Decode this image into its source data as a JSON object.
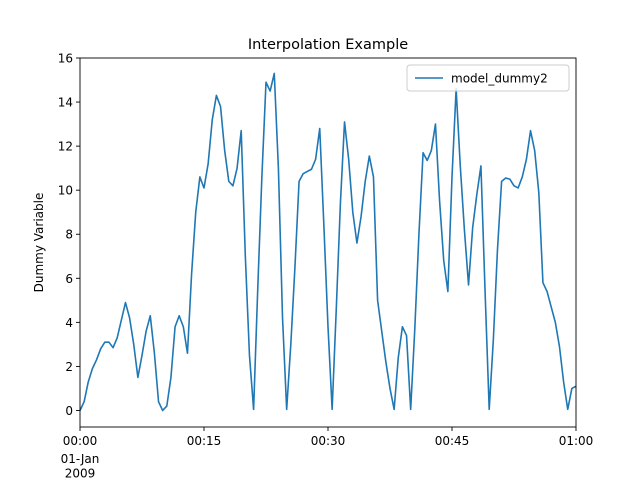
{
  "chart_data": {
    "type": "line",
    "title": "Interpolation Example",
    "xlabel": "",
    "ylabel": "Dummy Variable",
    "x_unit": "minutes",
    "xlim": [
      0,
      60
    ],
    "ylim": [
      -0.75,
      16
    ],
    "yticks": [
      0,
      2,
      4,
      6,
      8,
      10,
      12,
      14,
      16
    ],
    "xticks": [
      {
        "value": 0,
        "label": "00:00",
        "sublabel": "01-Jan\n2009"
      },
      {
        "value": 15,
        "label": "00:15",
        "sublabel": ""
      },
      {
        "value": 30,
        "label": "00:30",
        "sublabel": ""
      },
      {
        "value": 45,
        "label": "00:45",
        "sublabel": ""
      },
      {
        "value": 60,
        "label": "01:00",
        "sublabel": ""
      }
    ],
    "grid": false,
    "legend": {
      "placement": "top-right"
    },
    "series": [
      {
        "name": "model_dummy2",
        "color": "#1f77b4",
        "points": [
          [
            0,
            0
          ],
          [
            0.5,
            0.4
          ],
          [
            1.0,
            1.3
          ],
          [
            1.5,
            1.9
          ],
          [
            2.0,
            2.3
          ],
          [
            2.5,
            2.8
          ],
          [
            3.0,
            3.1
          ],
          [
            3.5,
            3.1
          ],
          [
            4.0,
            2.85
          ],
          [
            4.5,
            3.3
          ],
          [
            5.0,
            4.1
          ],
          [
            5.5,
            4.9
          ],
          [
            6.0,
            4.2
          ],
          [
            6.5,
            3.0
          ],
          [
            7.0,
            1.5
          ],
          [
            7.5,
            2.5
          ],
          [
            8.0,
            3.6
          ],
          [
            8.5,
            4.3
          ],
          [
            9.0,
            2.6
          ],
          [
            9.5,
            0.4
          ],
          [
            10.0,
            0.0
          ],
          [
            10.5,
            0.2
          ],
          [
            11.0,
            1.5
          ],
          [
            11.5,
            3.8
          ],
          [
            12.0,
            4.3
          ],
          [
            12.5,
            3.8
          ],
          [
            13.0,
            2.6
          ],
          [
            13.5,
            6.2
          ],
          [
            14.0,
            9.0
          ],
          [
            14.5,
            10.6
          ],
          [
            15.0,
            10.1
          ],
          [
            15.5,
            11.2
          ],
          [
            16.0,
            13.2
          ],
          [
            16.5,
            14.3
          ],
          [
            17.0,
            13.8
          ],
          [
            17.5,
            11.8
          ],
          [
            18.0,
            10.4
          ],
          [
            18.5,
            10.2
          ],
          [
            19.0,
            11.0
          ],
          [
            19.5,
            12.7
          ],
          [
            20.0,
            7.0
          ],
          [
            20.5,
            2.5
          ],
          [
            21.0,
            0.05
          ],
          [
            21.5,
            5.5
          ],
          [
            22.0,
            10.6
          ],
          [
            22.5,
            14.9
          ],
          [
            23.0,
            14.5
          ],
          [
            23.5,
            15.3
          ],
          [
            24.0,
            11.0
          ],
          [
            24.5,
            4.2
          ],
          [
            25.0,
            0.05
          ],
          [
            25.5,
            3.0
          ],
          [
            26.0,
            6.5
          ],
          [
            26.5,
            10.4
          ],
          [
            27.0,
            10.75
          ],
          [
            27.5,
            10.85
          ],
          [
            28.0,
            10.95
          ],
          [
            28.5,
            11.4
          ],
          [
            29.0,
            12.8
          ],
          [
            29.5,
            8.4
          ],
          [
            30.0,
            3.8
          ],
          [
            30.5,
            0.05
          ],
          [
            31.0,
            4.6
          ],
          [
            31.5,
            9.4
          ],
          [
            32.0,
            13.1
          ],
          [
            32.5,
            11.4
          ],
          [
            33.0,
            9.0
          ],
          [
            33.5,
            7.6
          ],
          [
            34.0,
            8.8
          ],
          [
            34.5,
            10.4
          ],
          [
            35.0,
            11.55
          ],
          [
            35.5,
            10.6
          ],
          [
            36.0,
            5.0
          ],
          [
            36.5,
            3.6
          ],
          [
            37.0,
            2.2
          ],
          [
            37.5,
            1.0
          ],
          [
            38.0,
            0.05
          ],
          [
            38.5,
            2.4
          ],
          [
            39.0,
            3.8
          ],
          [
            39.5,
            3.4
          ],
          [
            40.0,
            0.05
          ],
          [
            40.5,
            3.7
          ],
          [
            41.0,
            8.0
          ],
          [
            41.5,
            11.7
          ],
          [
            42.0,
            11.35
          ],
          [
            42.5,
            11.8
          ],
          [
            43.0,
            13.0
          ],
          [
            43.5,
            9.5
          ],
          [
            44.0,
            6.8
          ],
          [
            44.5,
            5.4
          ],
          [
            45.0,
            10.6
          ],
          [
            45.5,
            14.6
          ],
          [
            46.0,
            11.1
          ],
          [
            46.5,
            8.2
          ],
          [
            47.0,
            5.7
          ],
          [
            47.5,
            8.3
          ],
          [
            48.0,
            9.8
          ],
          [
            48.5,
            11.1
          ],
          [
            49.0,
            5.4
          ],
          [
            49.5,
            0.05
          ],
          [
            50.0,
            3.2
          ],
          [
            50.5,
            7.3
          ],
          [
            51.0,
            10.4
          ],
          [
            51.5,
            10.55
          ],
          [
            52.0,
            10.5
          ],
          [
            52.5,
            10.2
          ],
          [
            53.0,
            10.1
          ],
          [
            53.5,
            10.6
          ],
          [
            54.0,
            11.4
          ],
          [
            54.5,
            12.7
          ],
          [
            55.0,
            11.8
          ],
          [
            55.5,
            9.9
          ],
          [
            56.0,
            5.8
          ],
          [
            56.5,
            5.4
          ],
          [
            57.0,
            4.7
          ],
          [
            57.5,
            4.0
          ],
          [
            58.0,
            2.9
          ],
          [
            58.5,
            1.3
          ],
          [
            59.0,
            0.05
          ],
          [
            59.5,
            1.0
          ],
          [
            60.0,
            1.1
          ]
        ]
      }
    ]
  }
}
